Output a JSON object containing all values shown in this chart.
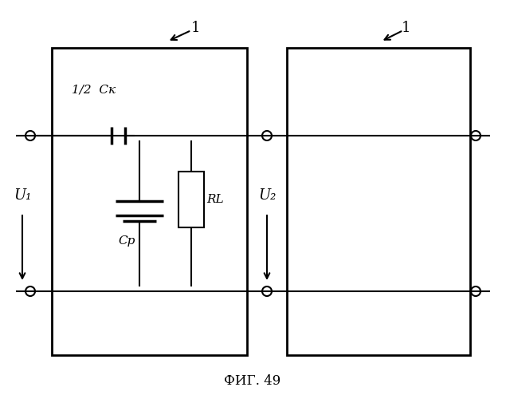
{
  "bg_color": "#ffffff",
  "line_color": "#000000",
  "title": "ФИГ. 49",
  "label_1": "1",
  "label_1b": "1",
  "label_U1": "U₁",
  "label_U2": "U₂",
  "label_Ck": "1/2  Cк",
  "label_Cp": "Cр",
  "label_RL": "RL",
  "figsize": [
    6.35,
    5.0
  ],
  "dpi": 100
}
